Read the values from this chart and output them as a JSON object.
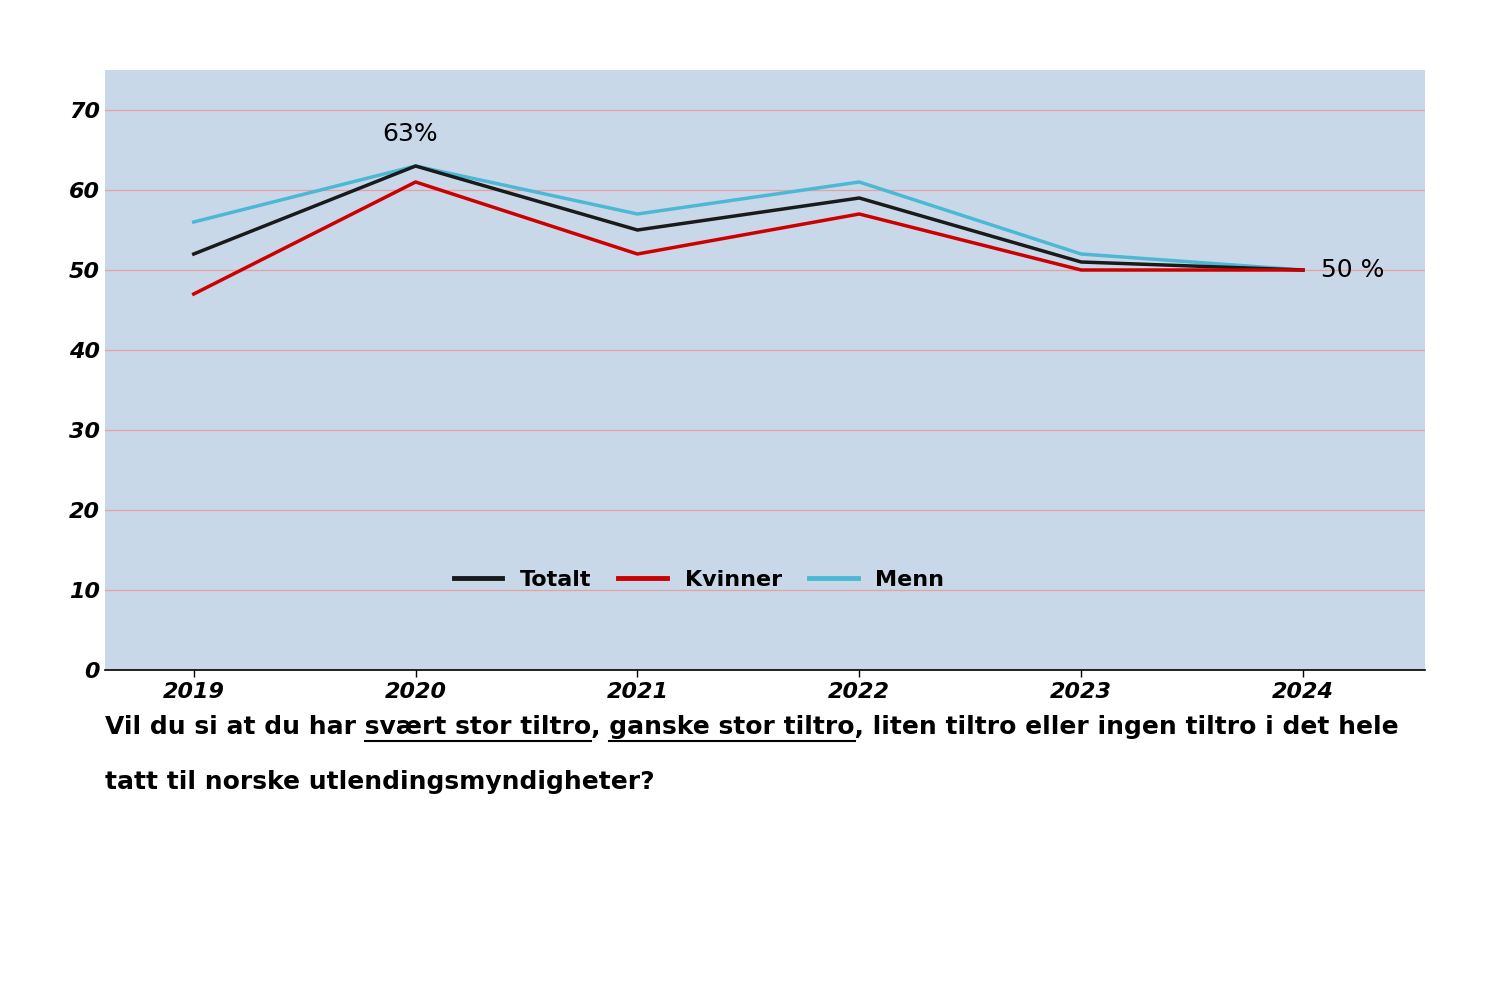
{
  "years": [
    2019,
    2020,
    2021,
    2022,
    2023,
    2024
  ],
  "totalt": [
    52,
    63,
    55,
    59,
    51,
    50
  ],
  "kvinner": [
    47,
    61,
    52,
    57,
    50,
    50
  ],
  "menn": [
    56,
    63,
    57,
    61,
    52,
    50
  ],
  "line_colors": {
    "totalt": "#1a1a1a",
    "kvinner": "#cc0000",
    "menn": "#4db8d4"
  },
  "bg_color": "#c8d8e8",
  "outer_bg": "#ffffff",
  "ylim": [
    0,
    75
  ],
  "yticks": [
    0,
    10,
    20,
    30,
    40,
    50,
    60,
    70
  ],
  "annotation_63": "63%",
  "annotation_50": "50 %",
  "legend_labels": [
    "Totalt",
    "Kvinner",
    "Menn"
  ],
  "prefix1": "Vil du si at du har ",
  "underline1": "svært stor tiltro",
  "mid1": ", ",
  "underline2": "ganske stor tiltro",
  "rest_line1": ", liten tiltro eller ingen tiltro i det hele",
  "caption_line2": "tatt til norske utlendingsmyndigheter?",
  "caption_fontsize": 18,
  "grid_color": "#e8a0a0",
  "tick_fontsize": 16,
  "legend_fontsize": 16,
  "annotation_fontsize": 18,
  "linewidth": 2.5
}
